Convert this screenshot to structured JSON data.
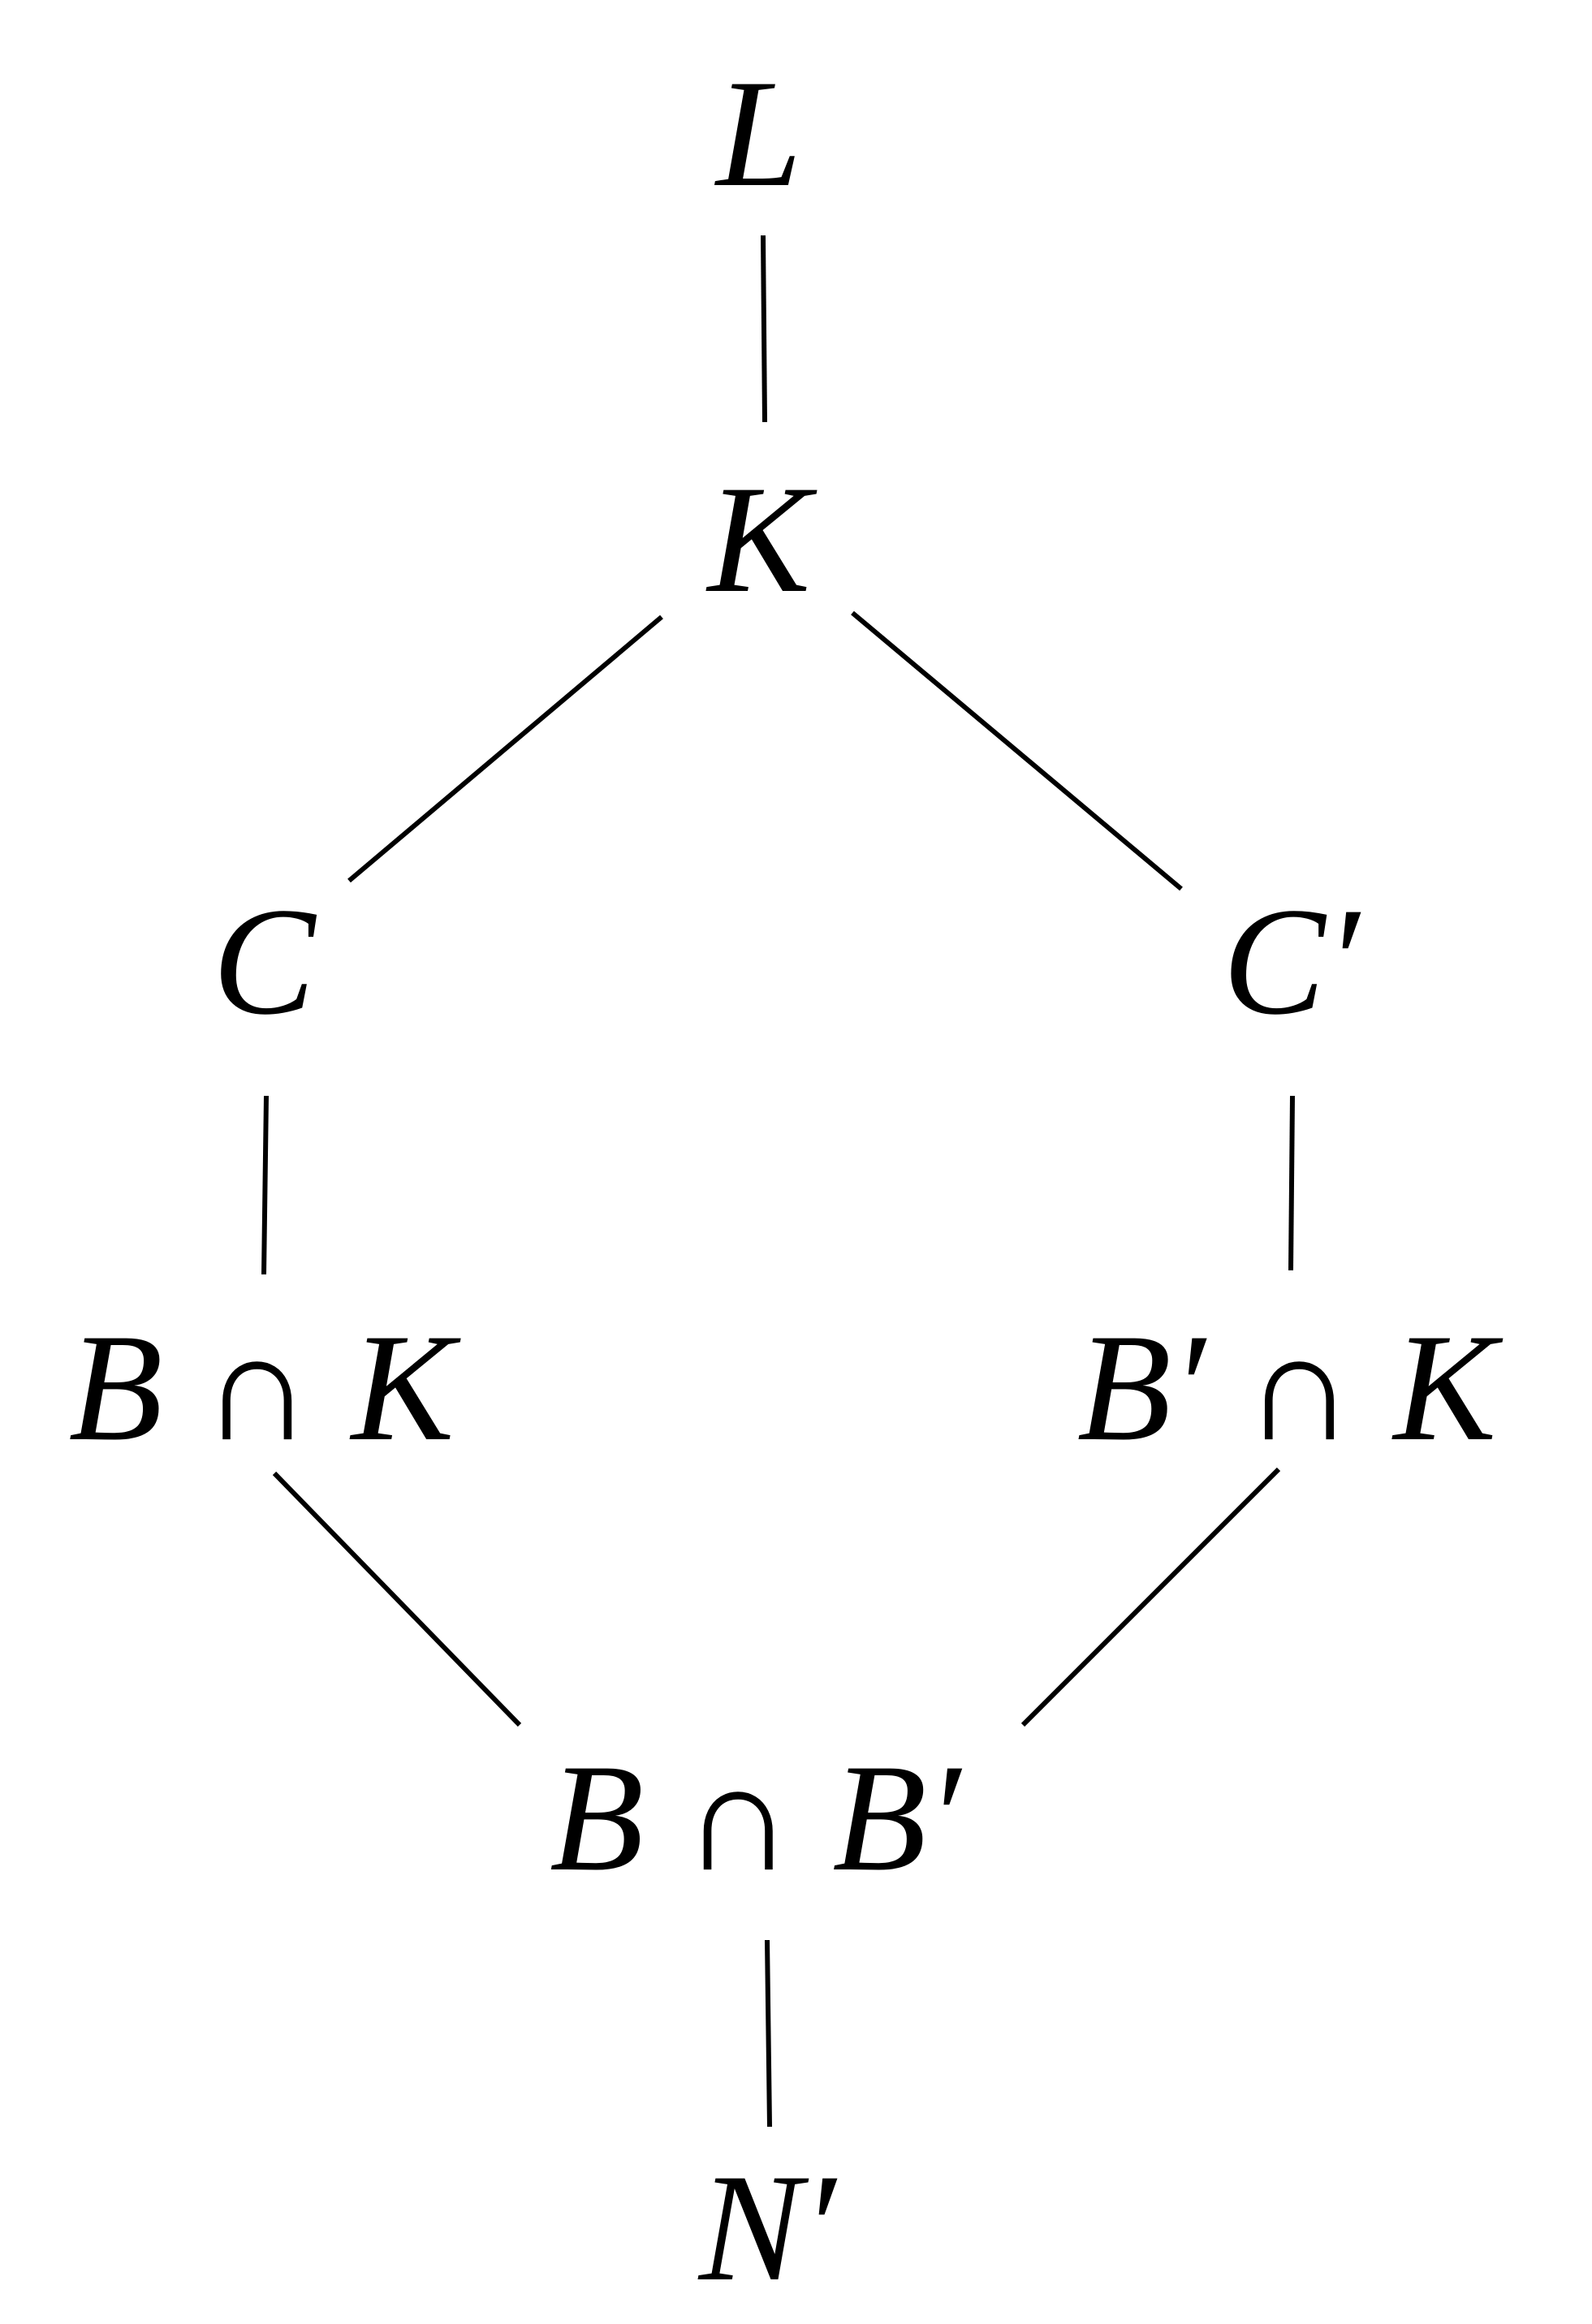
{
  "diagram": {
    "nodes": [
      {
        "id": "L",
        "label": "L"
      },
      {
        "id": "K",
        "label": "K"
      },
      {
        "id": "C",
        "label": "C"
      },
      {
        "id": "Cp",
        "label": "C′"
      },
      {
        "id": "BK",
        "label": "B ∩ K"
      },
      {
        "id": "BpK",
        "label": "B′ ∩ K"
      },
      {
        "id": "BBp",
        "label": "B ∩ B′"
      },
      {
        "id": "Np",
        "label": "N′"
      }
    ],
    "edges": [
      {
        "from": "L",
        "to": "K"
      },
      {
        "from": "K",
        "to": "C"
      },
      {
        "from": "K",
        "to": "Cp"
      },
      {
        "from": "C",
        "to": "BK"
      },
      {
        "from": "Cp",
        "to": "BpK"
      },
      {
        "from": "BK",
        "to": "BBp"
      },
      {
        "from": "BpK",
        "to": "BBp"
      },
      {
        "from": "BBp",
        "to": "Np"
      }
    ],
    "line_color": "#000000",
    "text_color": "#000000",
    "background": "#ffffff"
  }
}
